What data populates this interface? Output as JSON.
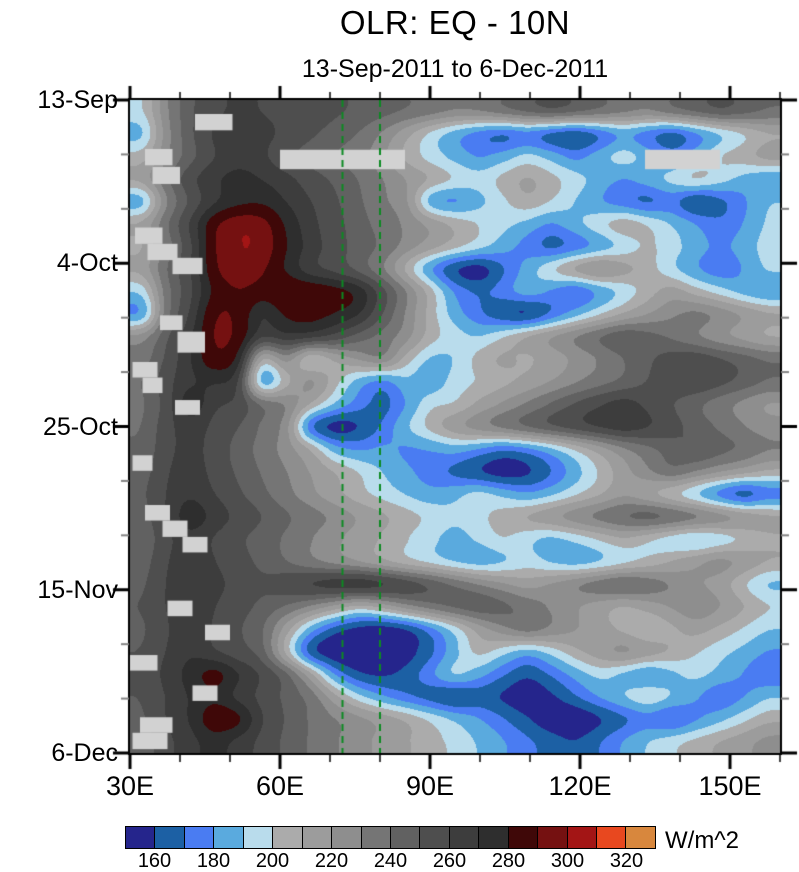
{
  "title": "OLR: EQ - 10N",
  "subtitle": "13-Sep-2011 to 6-Dec-2011",
  "chart_data": {
    "type": "heatmap",
    "description": "Hovmoller time-longitude filled-contour plot of outgoing longwave radiation, equator to 10N",
    "x_axis": {
      "unit": "degrees-east",
      "range": [
        30,
        160
      ],
      "major_ticks": [
        {
          "label": "30E",
          "lon": 30
        },
        {
          "label": "60E",
          "lon": 60
        },
        {
          "label": "90E",
          "lon": 90
        },
        {
          "label": "120E",
          "lon": 120
        },
        {
          "label": "150E",
          "lon": 150
        }
      ],
      "minor_tick_step": 10
    },
    "y_axis": {
      "range_days": [
        0,
        84
      ],
      "start_date": "13-Sep-2011",
      "end_date": "6-Dec-2011",
      "major_ticks": [
        {
          "label": "13-Sep",
          "day": 0
        },
        {
          "label": "4-Oct",
          "day": 21
        },
        {
          "label": "25-Oct",
          "day": 42
        },
        {
          "label": "15-Nov",
          "day": 63
        },
        {
          "label": "6-Dec",
          "day": 84
        }
      ],
      "minor_tick_step_days": 7
    },
    "colorbar": {
      "units": "W/m^2",
      "levels": [
        160,
        170,
        180,
        190,
        200,
        210,
        220,
        230,
        240,
        250,
        260,
        270,
        280,
        290,
        300,
        310,
        320
      ],
      "tick_labels": [
        160,
        180,
        200,
        220,
        240,
        260,
        280,
        300,
        320
      ],
      "colors": [
        "#25258c",
        "#1c60a4",
        "#4a7cf2",
        "#5aaade",
        "#b9dcec",
        "#ababab",
        "#9c9c9c",
        "#8e8e8e",
        "#757575",
        "#616161",
        "#4e4e4e",
        "#3d3d3d",
        "#2e2e2e",
        "#3f0808",
        "#751111",
        "#a31515",
        "#e8481f",
        "#d8873d"
      ],
      "missing_color": "#d2d2d2"
    },
    "reference_lines": {
      "lons": [
        72.5,
        80
      ],
      "color": "#0c8a22",
      "style": "dashed"
    },
    "grid": {
      "lon_start": 30,
      "lon_step": 5,
      "day_start": 0,
      "day_step": 3,
      "units": "W/m^2",
      "values": [
        [
          198,
          228,
          248,
          258,
          262,
          260,
          258,
          256,
          252,
          248,
          244,
          240,
          235,
          230,
          232,
          238,
          245,
          250,
          246,
          240,
          234,
          230,
          238,
          244,
          250,
          246,
          240
        ],
        [
          186,
          225,
          248,
          262,
          268,
          264,
          258,
          252,
          246,
          240,
          228,
          212,
          196,
          183,
          173,
          166,
          172,
          163,
          158,
          168,
          180,
          172,
          162,
          175,
          188,
          198,
          208
        ],
        [
          205,
          228,
          246,
          260,
          266,
          262,
          252,
          246,
          240,
          234,
          222,
          206,
          195,
          186,
          178,
          185,
          194,
          186,
          176,
          186,
          196,
          186,
          176,
          186,
          200,
          206,
          215
        ],
        [
          214,
          238,
          258,
          268,
          274,
          270,
          264,
          255,
          248,
          240,
          230,
          220,
          210,
          200,
          195,
          204,
          212,
          204,
          195,
          186,
          179,
          186,
          195,
          204,
          196,
          186,
          180
        ],
        [
          183,
          228,
          252,
          268,
          276,
          278,
          270,
          261,
          252,
          242,
          232,
          222,
          182,
          176,
          186,
          198,
          208,
          200,
          190,
          180,
          172,
          166,
          172,
          158,
          166,
          178,
          190
        ],
        [
          212,
          238,
          262,
          288,
          298,
          295,
          278,
          264,
          254,
          244,
          236,
          228,
          218,
          208,
          200,
          194,
          187,
          178,
          188,
          198,
          208,
          200,
          190,
          180,
          172,
          180,
          192
        ],
        [
          208,
          234,
          258,
          290,
          300,
          298,
          280,
          266,
          255,
          246,
          238,
          226,
          215,
          205,
          195,
          185,
          175,
          165,
          172,
          182,
          192,
          202,
          195,
          185,
          178,
          185,
          195
        ],
        [
          214,
          240,
          260,
          288,
          298,
          292,
          278,
          263,
          256,
          246,
          230,
          205,
          178,
          158,
          152,
          168,
          185,
          200,
          215,
          225,
          215,
          205,
          192,
          180,
          172,
          180,
          192
        ],
        [
          192,
          235,
          258,
          282,
          290,
          285,
          290,
          290,
          285,
          278,
          255,
          230,
          205,
          178,
          168,
          176,
          186,
          178,
          168,
          180,
          192,
          204,
          215,
          205,
          195,
          185,
          178
        ],
        [
          178,
          235,
          262,
          290,
          288,
          270,
          282,
          285,
          280,
          272,
          250,
          228,
          205,
          185,
          172,
          160,
          155,
          170,
          185,
          198,
          210,
          220,
          228,
          234,
          228,
          220,
          212
        ],
        [
          225,
          248,
          268,
          292,
          288,
          262,
          268,
          266,
          258,
          246,
          236,
          224,
          205,
          195,
          190,
          200,
          212,
          222,
          232,
          242,
          250,
          245,
          238,
          230,
          222,
          215,
          208
        ],
        [
          235,
          252,
          270,
          288,
          278,
          205,
          225,
          196,
          210,
          222,
          230,
          205,
          188,
          190,
          205,
          212,
          208,
          214,
          222,
          230,
          240,
          248,
          255,
          258,
          252,
          246,
          240
        ],
        [
          240,
          256,
          268,
          272,
          262,
          178,
          205,
          225,
          205,
          185,
          175,
          188,
          182,
          195,
          200,
          206,
          212,
          220,
          228,
          235,
          242,
          250,
          256,
          260,
          254,
          247,
          240
        ],
        [
          238,
          254,
          278,
          262,
          258,
          240,
          230,
          210,
          190,
          175,
          165,
          180,
          198,
          200,
          212,
          222,
          232,
          242,
          252,
          260,
          266,
          258,
          250,
          242,
          234,
          226,
          218
        ],
        [
          240,
          256,
          266,
          258,
          250,
          238,
          225,
          168,
          152,
          158,
          172,
          190,
          205,
          218,
          228,
          236,
          244,
          252,
          258,
          264,
          268,
          262,
          254,
          246,
          238,
          230,
          224
        ],
        [
          242,
          257,
          264,
          256,
          246,
          236,
          225,
          210,
          185,
          178,
          182,
          178,
          180,
          185,
          178,
          170,
          175,
          186,
          200,
          214,
          227,
          237,
          245,
          251,
          245,
          239,
          232
        ],
        [
          245,
          259,
          266,
          257,
          248,
          239,
          230,
          220,
          210,
          200,
          190,
          182,
          174,
          166,
          158,
          152,
          156,
          168,
          185,
          200,
          215,
          228,
          238,
          230,
          222,
          215,
          208
        ],
        [
          248,
          261,
          269,
          261,
          252,
          243,
          233,
          223,
          213,
          203,
          196,
          189,
          183,
          188,
          195,
          188,
          181,
          188,
          198,
          208,
          218,
          210,
          200,
          188,
          172,
          161,
          172
        ],
        [
          245,
          261,
          277,
          267,
          258,
          250,
          242,
          235,
          228,
          220,
          212,
          205,
          198,
          192,
          198,
          205,
          212,
          220,
          228,
          235,
          242,
          247,
          242,
          235,
          228,
          220,
          213
        ],
        [
          242,
          257,
          267,
          259,
          252,
          245,
          238,
          230,
          222,
          215,
          208,
          200,
          192,
          186,
          192,
          200,
          192,
          186,
          192,
          200,
          208,
          200,
          192,
          186,
          192,
          200,
          208
        ],
        [
          245,
          259,
          269,
          261,
          254,
          247,
          240,
          232,
          225,
          218,
          210,
          202,
          195,
          188,
          183,
          188,
          195,
          188,
          183,
          188,
          195,
          202,
          210,
          218,
          225,
          218,
          210
        ],
        [
          248,
          261,
          271,
          264,
          257,
          252,
          258,
          264,
          269,
          271,
          267,
          259,
          250,
          240,
          230,
          222,
          215,
          222,
          230,
          238,
          244,
          238,
          230,
          222,
          215,
          200,
          188
        ],
        [
          250,
          261,
          269,
          261,
          254,
          247,
          239,
          229,
          217,
          205,
          214,
          227,
          237,
          244,
          249,
          244,
          237,
          229,
          221,
          214,
          207,
          214,
          221,
          229,
          221,
          211,
          201
        ],
        [
          248,
          259,
          267,
          259,
          251,
          241,
          214,
          184,
          164,
          154,
          151,
          157,
          174,
          194,
          214,
          227,
          237,
          229,
          221,
          214,
          207,
          199,
          207,
          214,
          207,
          199,
          191
        ],
        [
          250,
          261,
          269,
          261,
          254,
          244,
          204,
          161,
          149,
          147,
          149,
          154,
          167,
          187,
          204,
          194,
          184,
          194,
          207,
          217,
          224,
          217,
          209,
          201,
          194,
          187,
          179
        ],
        [
          252,
          264,
          274,
          285,
          271,
          259,
          244,
          214,
          179,
          161,
          157,
          164,
          179,
          194,
          184,
          171,
          161,
          171,
          184,
          194,
          187,
          179,
          187,
          194,
          187,
          179,
          171
        ],
        [
          250,
          261,
          271,
          277,
          267,
          257,
          247,
          237,
          214,
          194,
          181,
          171,
          164,
          157,
          164,
          157,
          151,
          157,
          169,
          181,
          191,
          199,
          191,
          181,
          171,
          179,
          189
        ],
        [
          248,
          261,
          271,
          288,
          284,
          261,
          249,
          239,
          231,
          224,
          217,
          209,
          199,
          189,
          181,
          171,
          161,
          151,
          149,
          157,
          167,
          174,
          167,
          177,
          187,
          197,
          207
        ],
        [
          244,
          257,
          267,
          274,
          267,
          257,
          247,
          239,
          231,
          224,
          217,
          211,
          204,
          197,
          189,
          181,
          173,
          165,
          160,
          170,
          181,
          191,
          197,
          204,
          211,
          217,
          224
        ]
      ]
    },
    "missing_blocks": [
      {
        "lon": [
          43,
          50.5
        ],
        "day": [
          1.8,
          3.9
        ]
      },
      {
        "lon": [
          33,
          38.5
        ],
        "day": [
          6.3,
          8.4
        ]
      },
      {
        "lon": [
          34.5,
          40
        ],
        "day": [
          8.6,
          10.8
        ]
      },
      {
        "lon": [
          60,
          85
        ],
        "day": [
          6.4,
          8.9
        ]
      },
      {
        "lon": [
          133,
          148
        ],
        "day": [
          6.4,
          8.9
        ]
      },
      {
        "lon": [
          31,
          36.5
        ],
        "day": [
          16.4,
          18.5
        ]
      },
      {
        "lon": [
          33.5,
          39.5
        ],
        "day": [
          18.5,
          20.6
        ]
      },
      {
        "lon": [
          38.5,
          44.5
        ],
        "day": [
          20.3,
          22.4
        ]
      },
      {
        "lon": [
          36,
          40.5
        ],
        "day": [
          27.7,
          29.6
        ]
      },
      {
        "lon": [
          39.5,
          45
        ],
        "day": [
          29.8,
          32.5
        ]
      },
      {
        "lon": [
          30.5,
          35.5
        ],
        "day": [
          33.7,
          35.7
        ]
      },
      {
        "lon": [
          32.5,
          36.5
        ],
        "day": [
          35.7,
          37.7
        ]
      },
      {
        "lon": [
          39,
          44
        ],
        "day": [
          38.6,
          40.5
        ]
      },
      {
        "lon": [
          30.5,
          34.5
        ],
        "day": [
          45.7,
          47.7
        ]
      },
      {
        "lon": [
          33,
          38
        ],
        "day": [
          52.1,
          54.1
        ]
      },
      {
        "lon": [
          36.5,
          41.5
        ],
        "day": [
          54.1,
          56.2
        ]
      },
      {
        "lon": [
          40.5,
          45.5
        ],
        "day": [
          56.2,
          58.2
        ]
      },
      {
        "lon": [
          37.5,
          42.5
        ],
        "day": [
          64.4,
          66.4
        ]
      },
      {
        "lon": [
          45,
          50
        ],
        "day": [
          67.5,
          69.5
        ]
      },
      {
        "lon": [
          30,
          35.5
        ],
        "day": [
          71.4,
          73.4
        ]
      },
      {
        "lon": [
          42.5,
          47.5
        ],
        "day": [
          75.3,
          77.3
        ]
      },
      {
        "lon": [
          32,
          38.5
        ],
        "day": [
          79.4,
          81.4
        ]
      },
      {
        "lon": [
          30.5,
          37.5
        ],
        "day": [
          81.4,
          83.5
        ]
      }
    ]
  }
}
